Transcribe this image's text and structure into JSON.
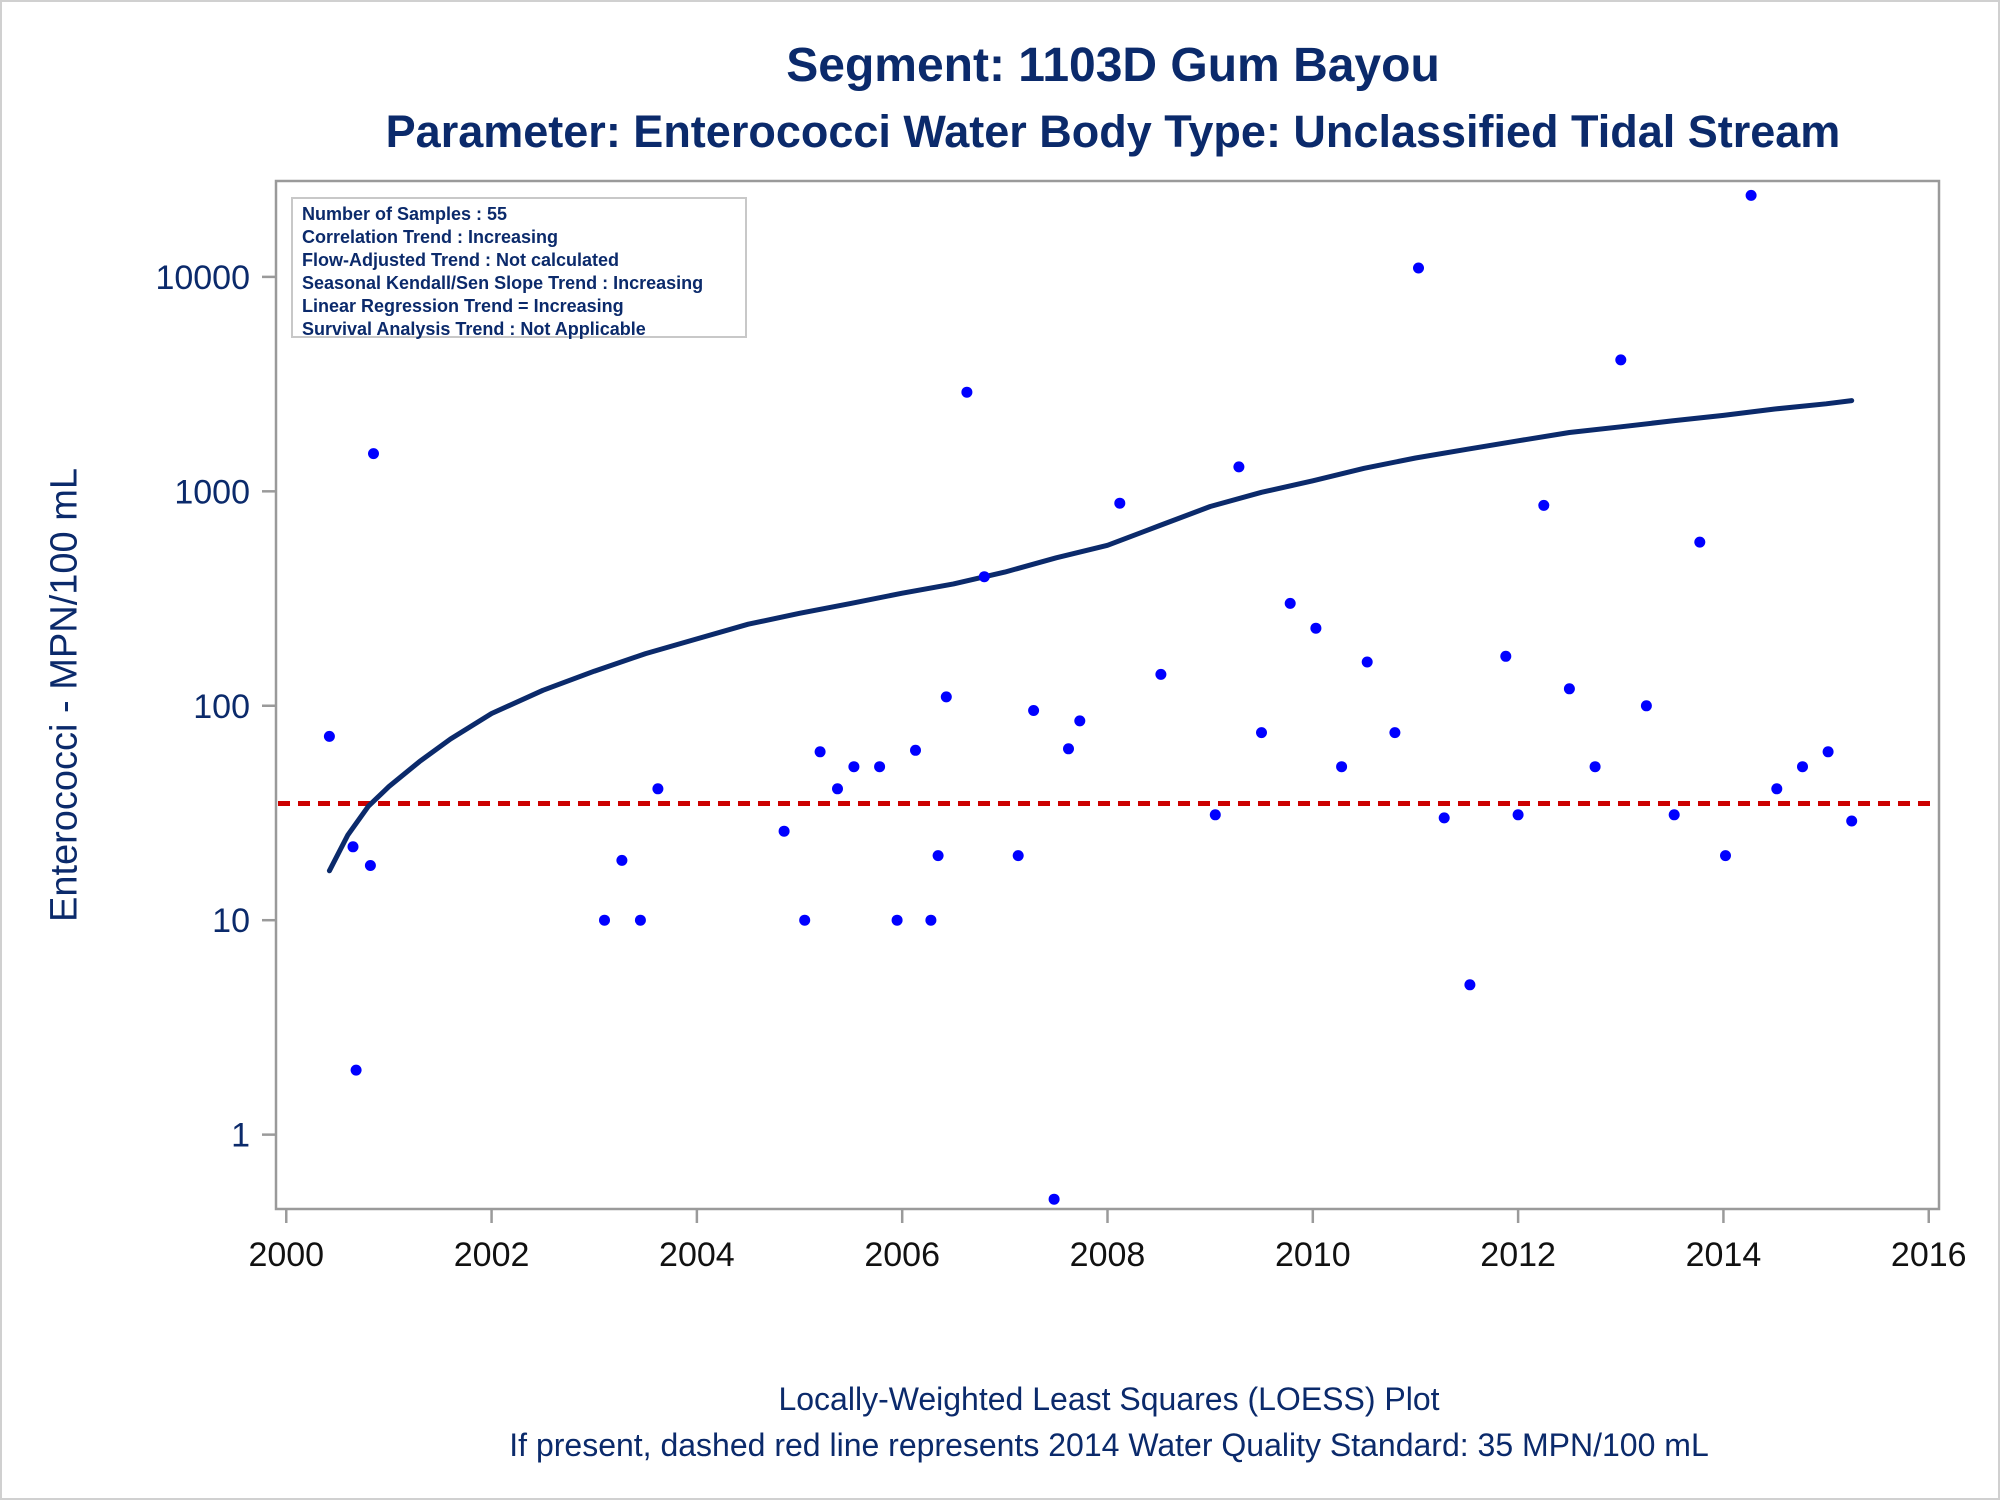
{
  "title": "Segment: 1103D  Gum Bayou",
  "subtitle": "Parameter: Enterococci   Water Body Type: Unclassified Tidal Stream",
  "footer_line1": "Locally-Weighted Least Squares (LOESS) Plot",
  "footer_line2": "If present, dashed red line represents 2014 Water Quality Standard: 35 MPN/100 mL",
  "stats_box": [
    "Number of Samples : 55",
    "Correlation Trend : Increasing",
    "Flow-Adjusted Trend : Not calculated",
    "Seasonal Kendall/Sen Slope Trend : Increasing",
    "Linear Regression Trend = Increasing",
    "Survival Analysis Trend : Not Applicable"
  ],
  "colors": {
    "text": "#0b2a6b",
    "points": "#0000ff",
    "loess": "#0b2a6b",
    "standard": "#cc0000",
    "axis": "#9a9a9a"
  },
  "chart_data": {
    "type": "scatter",
    "title": "Segment: 1103D  Gum Bayou",
    "xlabel": "",
    "ylabel": "Enterococci - MPN/100 mL",
    "y_scale": "log",
    "xlim": [
      1999.9,
      2016.1
    ],
    "ylim": [
      0.45,
      28000
    ],
    "x_ticks": [
      2000,
      2002,
      2004,
      2006,
      2008,
      2010,
      2012,
      2014,
      2016
    ],
    "y_ticks": [
      1,
      10,
      100,
      1000,
      10000
    ],
    "grid": false,
    "standard_line": {
      "value": 35,
      "style": "dashed",
      "color": "#cc0000"
    },
    "series": [
      {
        "type": "scatter",
        "x": [
          2000.42,
          2000.65,
          2000.68,
          2000.82,
          2000.85,
          2003.1,
          2003.27,
          2003.45,
          2003.62,
          2004.85,
          2005.05,
          2005.2,
          2005.37,
          2005.53,
          2005.78,
          2005.95,
          2006.13,
          2006.28,
          2006.35,
          2006.43,
          2006.63,
          2006.8,
          2007.13,
          2007.28,
          2007.48,
          2007.62,
          2007.73,
          2008.12,
          2008.52,
          2009.05,
          2009.28,
          2009.5,
          2009.78,
          2010.03,
          2010.28,
          2010.53,
          2010.8,
          2011.03,
          2011.28,
          2011.53,
          2011.88,
          2012.0,
          2012.25,
          2012.5,
          2012.75,
          2013.0,
          2013.25,
          2013.52,
          2013.77,
          2014.02,
          2014.27,
          2014.52,
          2014.77,
          2015.02,
          2015.25
        ],
        "y": [
          72,
          22,
          2,
          18,
          1500,
          10,
          19,
          10,
          41,
          26,
          10,
          61,
          41,
          52,
          52,
          10,
          62,
          10,
          20,
          110,
          2900,
          400,
          20,
          95,
          0.5,
          63,
          85,
          880,
          140,
          31,
          1300,
          75,
          300,
          230,
          52,
          160,
          75,
          11000,
          30,
          5,
          170,
          31,
          860,
          120,
          52,
          4100,
          100,
          31,
          580,
          20,
          24000,
          41,
          52,
          61,
          29
        ]
      },
      {
        "type": "line",
        "name": "LOESS",
        "x": [
          2000.42,
          2000.6,
          2000.8,
          2001.0,
          2001.3,
          2001.6,
          2002.0,
          2002.5,
          2003.0,
          2003.5,
          2004.0,
          2004.5,
          2005.0,
          2005.5,
          2006.0,
          2006.5,
          2007.0,
          2007.5,
          2008.0,
          2008.5,
          2009.0,
          2009.5,
          2010.0,
          2010.5,
          2011.0,
          2011.5,
          2012.0,
          2012.5,
          2013.0,
          2013.5,
          2014.0,
          2014.5,
          2015.0,
          2015.25
        ],
        "y": [
          17,
          25,
          34,
          42,
          55,
          70,
          92,
          118,
          145,
          175,
          205,
          240,
          270,
          300,
          335,
          370,
          420,
          490,
          560,
          690,
          850,
          990,
          1120,
          1280,
          1430,
          1570,
          1720,
          1880,
          2000,
          2130,
          2260,
          2420,
          2560,
          2650
        ]
      }
    ]
  }
}
